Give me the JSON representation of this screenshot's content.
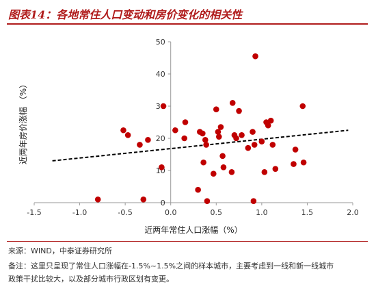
{
  "header": {
    "title": "图表14：各地常住人口变动和房价变化的相关性"
  },
  "chart_data": {
    "type": "scatter",
    "title": "",
    "xlabel": "近两年常住人口涨幅（%）",
    "ylabel": "近两年房价涨幅 （%）",
    "xlim": [
      -1.5,
      2.0
    ],
    "ylim": [
      0,
      50
    ],
    "x_ticks": [
      "-1.5",
      "-1.0",
      "-0.5",
      "0.0",
      "0.5",
      "1.0",
      "1.5",
      "2.0"
    ],
    "y_ticks": [
      "0",
      "10",
      "20",
      "30",
      "40",
      "50"
    ],
    "grid": false,
    "point_color": "#c00000",
    "trendline": {
      "style": "dashed",
      "color": "#000000",
      "x": [
        -1.3,
        1.95
      ],
      "y": [
        13.0,
        22.5
      ]
    },
    "points": [
      {
        "x": -0.8,
        "y": 1.0
      },
      {
        "x": -0.52,
        "y": 22.5
      },
      {
        "x": -0.47,
        "y": 21.0
      },
      {
        "x": -0.34,
        "y": 18.0
      },
      {
        "x": -0.3,
        "y": 1.0
      },
      {
        "x": -0.25,
        "y": 19.5
      },
      {
        "x": -0.1,
        "y": 11.0
      },
      {
        "x": -0.08,
        "y": 30.0
      },
      {
        "x": 0.05,
        "y": 22.5
      },
      {
        "x": 0.15,
        "y": 20.0
      },
      {
        "x": 0.16,
        "y": 25.0
      },
      {
        "x": 0.3,
        "y": 4.0
      },
      {
        "x": 0.32,
        "y": 22.0
      },
      {
        "x": 0.35,
        "y": 21.5
      },
      {
        "x": 0.36,
        "y": 12.5
      },
      {
        "x": 0.38,
        "y": 19.5
      },
      {
        "x": 0.39,
        "y": 18.0
      },
      {
        "x": 0.4,
        "y": 0.5
      },
      {
        "x": 0.47,
        "y": 9.0
      },
      {
        "x": 0.5,
        "y": 29.0
      },
      {
        "x": 0.52,
        "y": 22.0
      },
      {
        "x": 0.53,
        "y": 20.5
      },
      {
        "x": 0.55,
        "y": 23.5
      },
      {
        "x": 0.57,
        "y": 14.5
      },
      {
        "x": 0.58,
        "y": 11.0
      },
      {
        "x": 0.67,
        "y": 9.5
      },
      {
        "x": 0.68,
        "y": 31.0
      },
      {
        "x": 0.7,
        "y": 21.0
      },
      {
        "x": 0.72,
        "y": 20.0
      },
      {
        "x": 0.75,
        "y": 28.5
      },
      {
        "x": 0.78,
        "y": 21.0
      },
      {
        "x": 0.85,
        "y": 17.0
      },
      {
        "x": 0.9,
        "y": 22.0
      },
      {
        "x": 0.91,
        "y": 0.5
      },
      {
        "x": 0.92,
        "y": 18.0
      },
      {
        "x": 0.93,
        "y": 45.5
      },
      {
        "x": 1.0,
        "y": 19.0
      },
      {
        "x": 1.03,
        "y": 9.5
      },
      {
        "x": 1.05,
        "y": 25.0
      },
      {
        "x": 1.07,
        "y": 24.0
      },
      {
        "x": 1.1,
        "y": 25.5
      },
      {
        "x": 1.12,
        "y": 18.0
      },
      {
        "x": 1.15,
        "y": 10.5
      },
      {
        "x": 1.35,
        "y": 12.0
      },
      {
        "x": 1.37,
        "y": 16.5
      },
      {
        "x": 1.45,
        "y": 30.0
      },
      {
        "x": 1.46,
        "y": 12.5
      }
    ]
  },
  "footer": {
    "source": "来源：WIND，中泰证券研究所",
    "note_line1": "备注：这里只呈现了常住人口涨幅在-1.5%~1.5%之间的样本城市，主要考虑到一线和新一线城市",
    "note_line2": "政策干扰比较大，以及部分城市行政区划有变更。"
  }
}
